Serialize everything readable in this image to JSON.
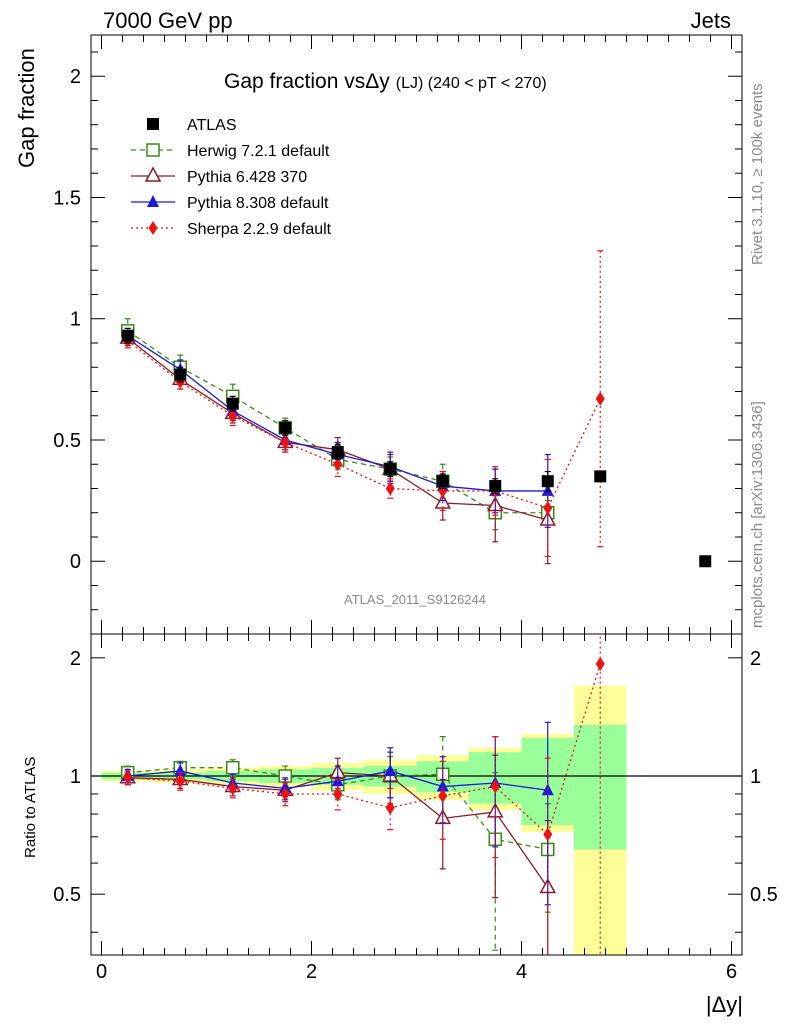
{
  "header": {
    "left": "7000 GeV pp",
    "right": "Jets"
  },
  "side": {
    "rivet": "Rivet 3.1.10, ≥ 100k events",
    "mcplots": "mcplots.cern.ch [arXiv:1306.3436]"
  },
  "watermark": "ATLAS_2011_S9126244",
  "chart_data": {
    "type": "scatter",
    "title": "Gap fraction vsΔy (LJ) (240 < pT < 270)",
    "title_main": "Gap fraction vsΔy",
    "title_sub": "(LJ) (240 < pT < 270)",
    "xlabel": "|Δy|",
    "ylabel": "Gap fraction",
    "ratio_ylabel": "Ratio to ATLAS",
    "xlim": [
      -0.1,
      6.1
    ],
    "ylim": [
      -0.3,
      2.17
    ],
    "ratio_ylim": [
      0.35,
      2.3
    ],
    "xticks": [
      0,
      2,
      4,
      6
    ],
    "yticks": [
      0,
      0.5,
      1,
      1.5,
      2
    ],
    "ratio_yticks": [
      0.5,
      1,
      2
    ],
    "x": [
      0.25,
      0.75,
      1.25,
      1.75,
      2.25,
      2.75,
      3.25,
      3.75,
      4.25,
      4.75,
      5.75
    ],
    "atlas": {
      "name": "ATLAS",
      "values": [
        0.93,
        0.77,
        0.65,
        0.55,
        0.45,
        0.38,
        0.33,
        0.31,
        0.33,
        0.35,
        0.0
      ],
      "errors": [
        0.03,
        0.03,
        0.03,
        0.03,
        0.03,
        0.03,
        0.03,
        0.03,
        0.04,
        0.02,
        0.0
      ]
    },
    "mc": [
      {
        "name": "Herwig 7.2.1 default",
        "color": "#3a8a1a",
        "marker": "open-square",
        "dash": "5,4",
        "values": [
          0.95,
          0.8,
          0.68,
          0.55,
          0.42,
          0.38,
          0.33,
          0.2,
          0.2
        ],
        "errors": [
          0.05,
          0.05,
          0.05,
          0.04,
          0.04,
          0.05,
          0.07,
          0.07,
          0.05
        ],
        "ratio": [
          1.02,
          1.05,
          1.05,
          1.0,
          0.95,
          1.0,
          1.01,
          0.69,
          0.65
        ],
        "ratio_errors": [
          0.04,
          0.04,
          0.05,
          0.06,
          0.08,
          0.12,
          0.25,
          0.33,
          0.2
        ]
      },
      {
        "name": "Pythia 6.428 370",
        "color": "#8b1a2a",
        "marker": "open-triangle",
        "dash": "",
        "values": [
          0.92,
          0.75,
          0.61,
          0.49,
          0.46,
          0.38,
          0.24,
          0.23,
          0.17
        ],
        "errors": [
          0.03,
          0.04,
          0.04,
          0.04,
          0.05,
          0.06,
          0.07,
          0.15,
          0.18
        ],
        "ratio": [
          0.99,
          0.98,
          0.94,
          0.92,
          1.02,
          1.0,
          0.78,
          0.81,
          0.52
        ],
        "ratio_errors": [
          0.04,
          0.05,
          0.05,
          0.06,
          0.09,
          0.15,
          0.2,
          0.32,
          0.25
        ]
      },
      {
        "name": "Pythia 8.308 default",
        "color": "#1a1ad8",
        "marker": "filled-triangle",
        "dash": "",
        "values": [
          0.93,
          0.79,
          0.62,
          0.5,
          0.44,
          0.39,
          0.31,
          0.29,
          0.29
        ],
        "errors": [
          0.03,
          0.04,
          0.04,
          0.04,
          0.05,
          0.06,
          0.06,
          0.09,
          0.15
        ],
        "ratio": [
          1.0,
          1.03,
          0.96,
          0.93,
          0.97,
          1.03,
          0.94,
          0.96,
          0.92
        ],
        "ratio_errors": [
          0.04,
          0.05,
          0.05,
          0.06,
          0.09,
          0.15,
          0.18,
          0.3,
          0.45
        ]
      },
      {
        "name": "Sherpa 2.2.9 default",
        "color": "#ee1111",
        "marker": "filled-diamond",
        "dash": "2,3",
        "values": [
          0.91,
          0.74,
          0.6,
          0.49,
          0.4,
          0.3,
          0.29,
          0.29,
          0.22,
          0.67
        ],
        "errors": [
          0.03,
          0.03,
          0.04,
          0.03,
          0.05,
          0.04,
          0.08,
          0.1,
          0.2,
          0.61
        ],
        "ratio": [
          0.99,
          0.97,
          0.93,
          0.9,
          0.9,
          0.83,
          0.89,
          0.94,
          0.71,
          1.93
        ],
        "ratio_errors": [
          0.04,
          0.05,
          0.05,
          0.06,
          0.08,
          0.1,
          0.2,
          0.32,
          0.4,
          1.8
        ]
      }
    ],
    "bands": {
      "edges": [
        0,
        0.5,
        1,
        1.5,
        2,
        2.5,
        3,
        3.5,
        4,
        4.5,
        5
      ],
      "green": [
        0.02,
        0.02,
        0.03,
        0.04,
        0.05,
        0.06,
        0.09,
        0.15,
        0.25,
        0.35
      ],
      "yellow": [
        0.03,
        0.04,
        0.05,
        0.06,
        0.08,
        0.1,
        0.13,
        0.18,
        0.28,
        0.7
      ]
    }
  }
}
